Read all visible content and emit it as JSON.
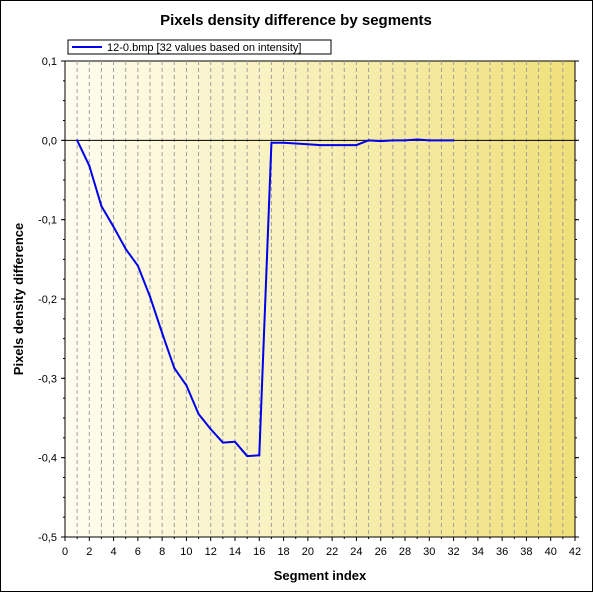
{
  "chart_data": {
    "type": "line",
    "title": "Pixels density difference by segments",
    "xlabel": "Segment index",
    "ylabel": "Pixels density difference",
    "xlim": [
      0,
      42
    ],
    "ylim": [
      -0.5,
      0.1
    ],
    "x_ticks": [
      0,
      2,
      4,
      6,
      8,
      10,
      12,
      14,
      16,
      18,
      20,
      22,
      24,
      26,
      28,
      30,
      32,
      34,
      36,
      38,
      40,
      42
    ],
    "y_ticks": [
      -0.5,
      -0.4,
      -0.3,
      -0.2,
      -0.1,
      0.0,
      0.1
    ],
    "x_tick_labels": [
      "0",
      "2",
      "4",
      "6",
      "8",
      "10",
      "12",
      "14",
      "16",
      "18",
      "20",
      "22",
      "24",
      "26",
      "28",
      "30",
      "32",
      "34",
      "36",
      "38",
      "40",
      "42"
    ],
    "y_tick_labels": [
      "-0,5",
      "-0,4",
      "-0,3",
      "-0,2",
      "-0,1",
      "0,0",
      "0,1"
    ],
    "grid": true,
    "legend_position": "top-left",
    "series": [
      {
        "name": "12-0.bmp [32 values based on intensity]",
        "color": "#0000ee",
        "x": [
          1,
          2,
          3,
          4,
          5,
          6,
          7,
          8,
          9,
          10,
          11,
          12,
          13,
          14,
          15,
          16,
          17,
          18,
          19,
          20,
          21,
          22,
          23,
          24,
          25,
          26,
          27,
          28,
          29,
          30,
          31,
          32
        ],
        "y": [
          0.0,
          -0.032,
          -0.083,
          -0.109,
          -0.137,
          -0.158,
          -0.197,
          -0.243,
          -0.287,
          -0.309,
          -0.345,
          -0.364,
          -0.381,
          -0.38,
          -0.398,
          -0.397,
          -0.003,
          -0.003,
          -0.004,
          -0.005,
          -0.006,
          -0.006,
          -0.006,
          -0.006,
          0.0,
          -0.001,
          0.0,
          0.0,
          0.001,
          0.0,
          0.0,
          0.0
        ]
      }
    ],
    "colors": {
      "plot_bg_start": "#fffdf0",
      "plot_bg_end": "#f0e07a",
      "grid": "#a0a0a0",
      "zero_line": "#000000"
    }
  }
}
